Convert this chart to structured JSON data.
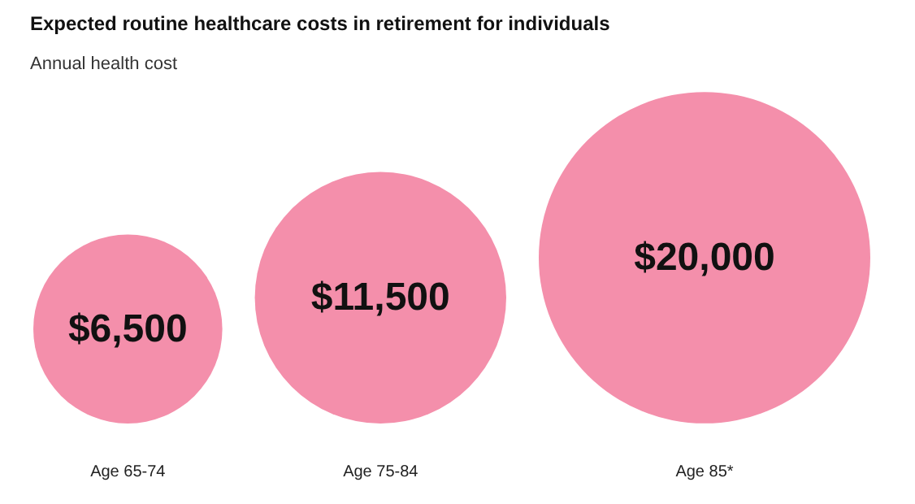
{
  "chart_data": {
    "type": "other",
    "title": "Expected routine healthcare costs in retirement for individuals",
    "subtitle": "Annual health cost",
    "categories": [
      "Age 65-74",
      "Age 75-84",
      "Age 85*"
    ],
    "values": [
      6500,
      11500,
      20000
    ],
    "value_labels": [
      "$6,500",
      "$11,500",
      "$20,000"
    ],
    "color": "#f48fab"
  }
}
